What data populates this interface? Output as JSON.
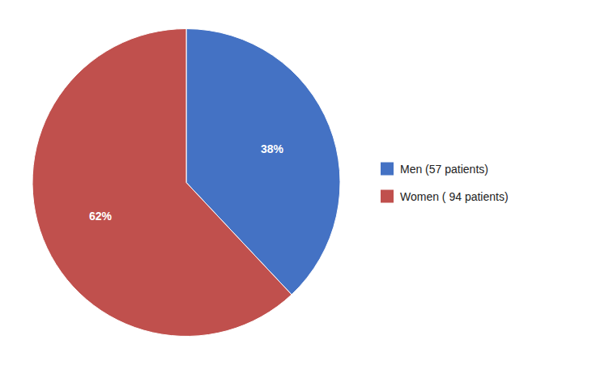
{
  "chart_data": {
    "type": "pie",
    "categories": [
      "Men (57 patients)",
      "Women ( 94 patients)"
    ],
    "values": [
      38,
      62
    ],
    "value_labels": [
      "38%",
      "62%"
    ],
    "colors": [
      "#4472C4",
      "#C0504D"
    ],
    "data_labels": true,
    "legend": "right"
  }
}
